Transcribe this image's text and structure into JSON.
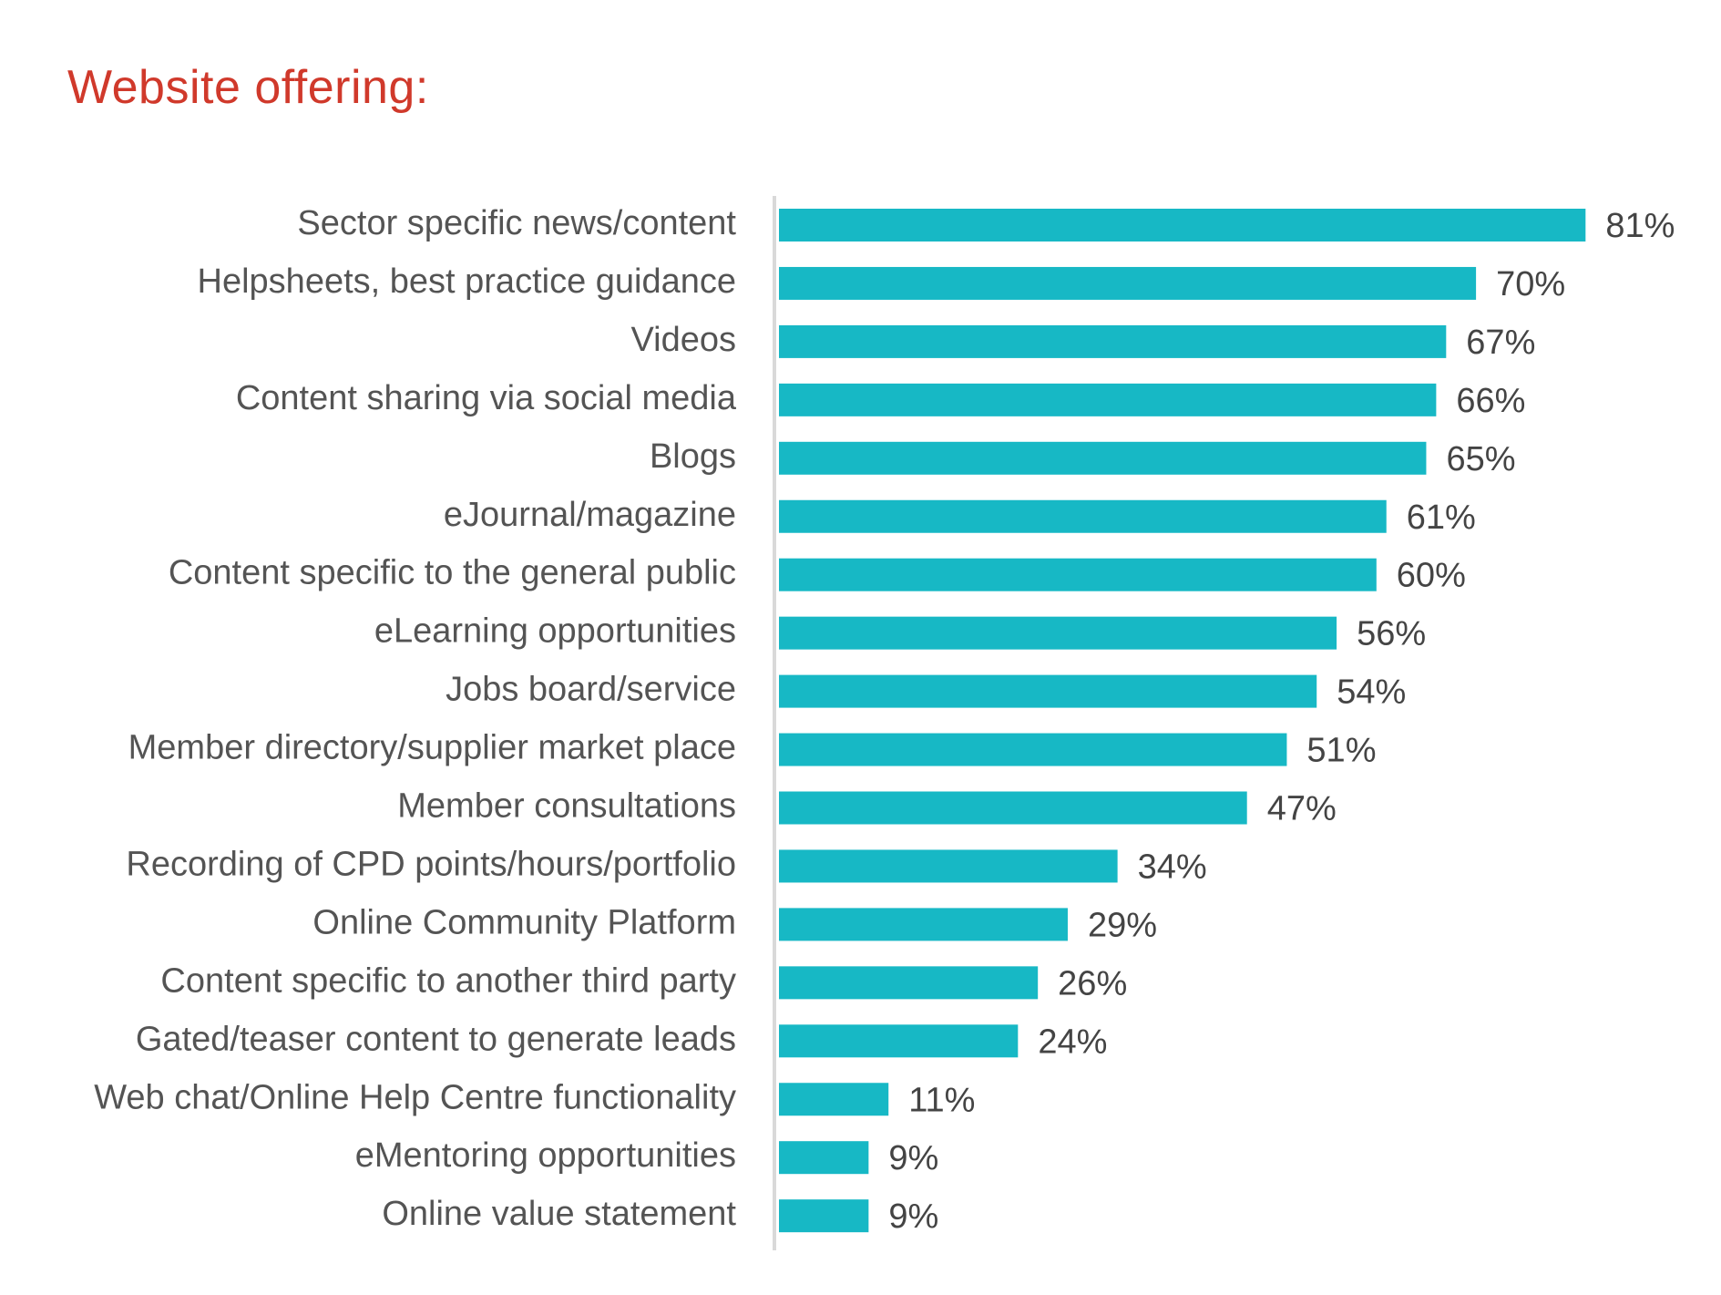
{
  "chart_data": {
    "type": "bar",
    "orientation": "horizontal",
    "title": "Website offering:",
    "categories": [
      "Sector specific news/content",
      "Helpsheets, best practice guidance",
      "Videos",
      "Content sharing via social media",
      "Blogs",
      "eJournal/magazine",
      "Content specific to the general public",
      "eLearning opportunities",
      "Jobs board/service",
      "Member directory/supplier market place",
      "Member consultations",
      "Recording of CPD points/hours/portfolio",
      "Online Community Platform",
      "Content specific to another third party",
      "Gated/teaser content to generate leads",
      "Web chat/Online Help Centre functionality",
      "eMentoring opportunities",
      "Online value statement"
    ],
    "values": [
      81,
      70,
      67,
      66,
      65,
      61,
      60,
      56,
      54,
      51,
      47,
      34,
      29,
      26,
      24,
      11,
      9,
      9
    ],
    "value_labels": [
      "81%",
      "70%",
      "67%",
      "66%",
      "65%",
      "61%",
      "60%",
      "56%",
      "54%",
      "51%",
      "47%",
      "34%",
      "29%",
      "26%",
      "24%",
      "11%",
      "9%",
      "9%"
    ],
    "unit": "%",
    "xlim": [
      0,
      100
    ],
    "grid": false,
    "legend": "none"
  },
  "colors": {
    "title": "#d0392b",
    "bar": "#17b8c5",
    "axis": "#d9d9d9",
    "category_text": "#545454",
    "value_text": "#444444"
  }
}
